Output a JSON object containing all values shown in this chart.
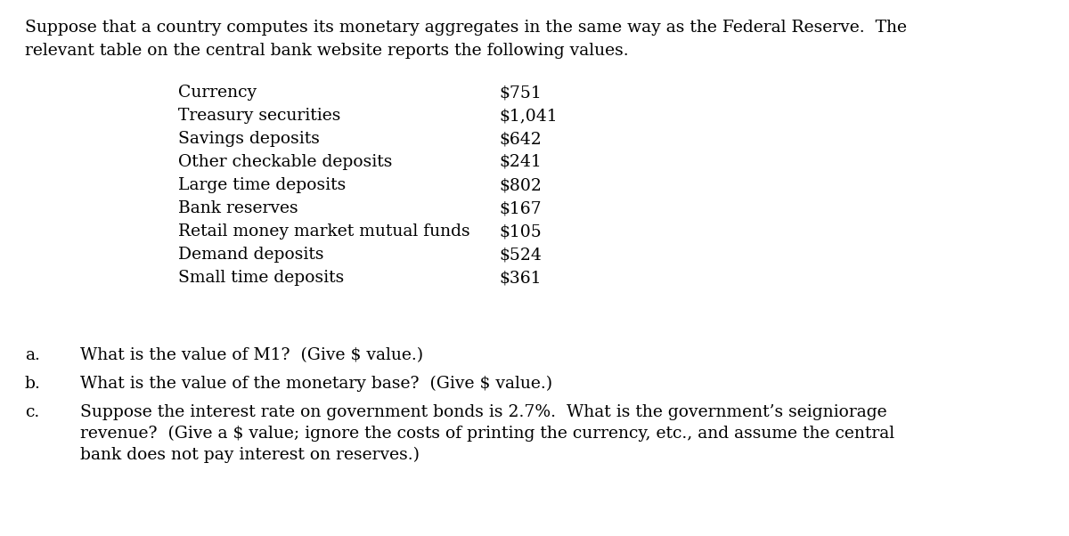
{
  "bg_color": "#ffffff",
  "intro_line1": "Suppose that a country computes its monetary aggregates in the same way as the Federal Reserve.  The",
  "intro_line2": "relevant table on the central bank website reports the following values.",
  "table_items": [
    [
      "Currency",
      "$751"
    ],
    [
      "Treasury securities",
      "$1,041"
    ],
    [
      "Savings deposits",
      "$642"
    ],
    [
      "Other checkable deposits",
      "$241"
    ],
    [
      "Large time deposits",
      "$802"
    ],
    [
      "Bank reserves",
      "$167"
    ],
    [
      "Retail money market mutual funds",
      "$105"
    ],
    [
      "Demand deposits",
      "$524"
    ],
    [
      "Small time deposits",
      "$361"
    ]
  ],
  "questions": [
    {
      "label": "a.",
      "lines": [
        "What is the value of M1?  (Give $ value.)"
      ]
    },
    {
      "label": "b.",
      "lines": [
        "What is the value of the monetary base?  (Give $ value.)"
      ]
    },
    {
      "label": "c.",
      "lines": [
        "Suppose the interest rate on government bonds is 2.7%.  What is the government’s seigniorage",
        "revenue?  (Give a $ value; ignore the costs of printing the currency, etc., and assume the central",
        "bank does not pay interest on reserves.)"
      ]
    }
  ],
  "font_family": "DejaVu Serif",
  "intro_fontsize": 13.5,
  "table_fontsize": 13.5,
  "question_fontsize": 13.5,
  "fig_width": 12.0,
  "fig_height": 6.02,
  "dpi": 100
}
